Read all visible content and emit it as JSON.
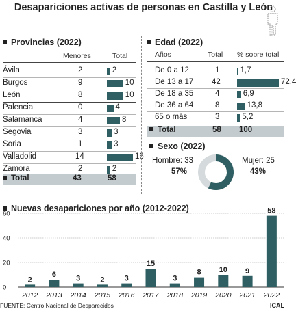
{
  "title": "Desapariciones activas de personas en Castilla y León",
  "provinces": {
    "heading": "Provincias (2022)",
    "col_minors": "Menores",
    "col_total": "Total",
    "rows": [
      {
        "name": "Ávila",
        "minors": "2",
        "total": 2
      },
      {
        "name": "Burgos",
        "minors": "9",
        "total": 10
      },
      {
        "name": "León",
        "minors": "8",
        "total": 10
      },
      {
        "name": "Palencia",
        "minors": "0",
        "total": 4
      },
      {
        "name": "Salamanca",
        "minors": "4",
        "total": 8
      },
      {
        "name": "Segovia",
        "minors": "3",
        "total": 3
      },
      {
        "name": "Soria",
        "minors": "1",
        "total": 3
      },
      {
        "name": "Valladolid",
        "minors": "14",
        "total": 16
      },
      {
        "name": "Zamora",
        "minors": "2",
        "total": 2
      }
    ],
    "total_label": "Total",
    "total_minors": "43",
    "total_total": "58"
  },
  "ages": {
    "heading": "Edad (2022)",
    "col_years": "Años",
    "col_total": "Total",
    "col_pct": "% sobre total",
    "rows": [
      {
        "name": "De 0 a 12",
        "total": "1",
        "pct": 1.7,
        "pct_label": "1,7"
      },
      {
        "name": "De 13 a 17",
        "total": "42",
        "pct": 72.4,
        "pct_label": "72,4"
      },
      {
        "name": "De 18 a 35",
        "total": "4",
        "pct": 6.9,
        "pct_label": "6,9"
      },
      {
        "name": "De 36 a 64",
        "total": "8",
        "pct": 13.8,
        "pct_label": "13,8"
      },
      {
        "name": "65 o más",
        "total": "3",
        "pct": 5.2,
        "pct_label": "5,2"
      }
    ],
    "total_label": "Total",
    "total_total": "58",
    "total_pct": "100"
  },
  "sex": {
    "heading": "Sexo (2022)",
    "male_label": "Hombre: 33",
    "male_pct": "57%",
    "female_label": "Mujer: 25",
    "female_pct": "43%",
    "male_share": 57,
    "female_share": 43
  },
  "yearly": {
    "heading": "Nuevas desapariciones por año (2012-2022)"
  },
  "chart_data": {
    "type": "bar",
    "title": "Nuevas desapariciones por año (2012-2022)",
    "categories": [
      "2012",
      "2013",
      "2014",
      "2015",
      "2016",
      "2017",
      "2018",
      "2019",
      "2020",
      "2021",
      "2022"
    ],
    "values": [
      2,
      6,
      3,
      2,
      3,
      15,
      3,
      8,
      10,
      9,
      58
    ],
    "ylim": [
      0,
      60
    ],
    "yticks": [
      0,
      20,
      40,
      60
    ],
    "grid": true
  },
  "colors": {
    "bar": "#2f5f62",
    "band": "#c3cbce",
    "donut_female": "#d5dadc"
  },
  "source": "FUENTE: Centro Nacional de Desparecidos",
  "brand": "ICAL"
}
